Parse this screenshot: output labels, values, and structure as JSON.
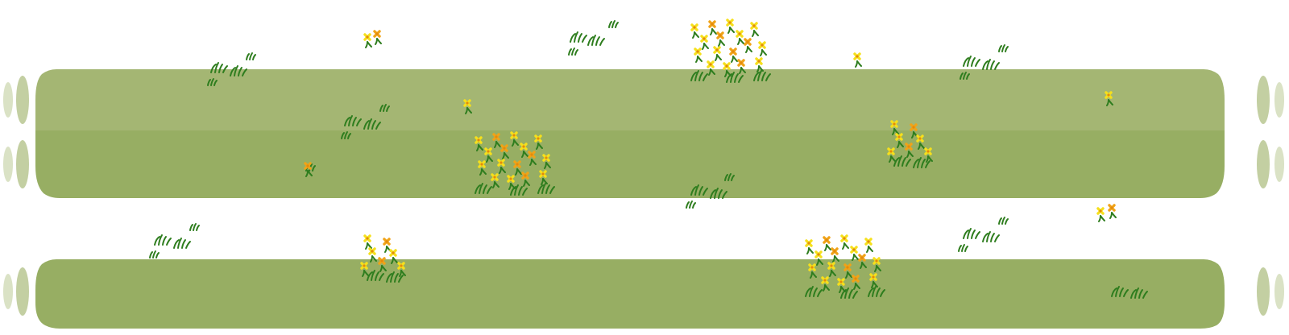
{
  "tileset": {
    "background": "#ffffff",
    "colors": {
      "grass_top": "#a4b673",
      "grass_mid": "#97ae63",
      "grass_fade_1": "#c3cfa2",
      "grass_fade_2": "#dae2c5",
      "tuft": "#2e7d1e",
      "flower_yellow": "#f6e01c",
      "flower_orange": "#f0a318"
    },
    "icons": [
      "grass-tuft-icon",
      "flower-cluster-icon",
      "single-flower-icon"
    ]
  }
}
